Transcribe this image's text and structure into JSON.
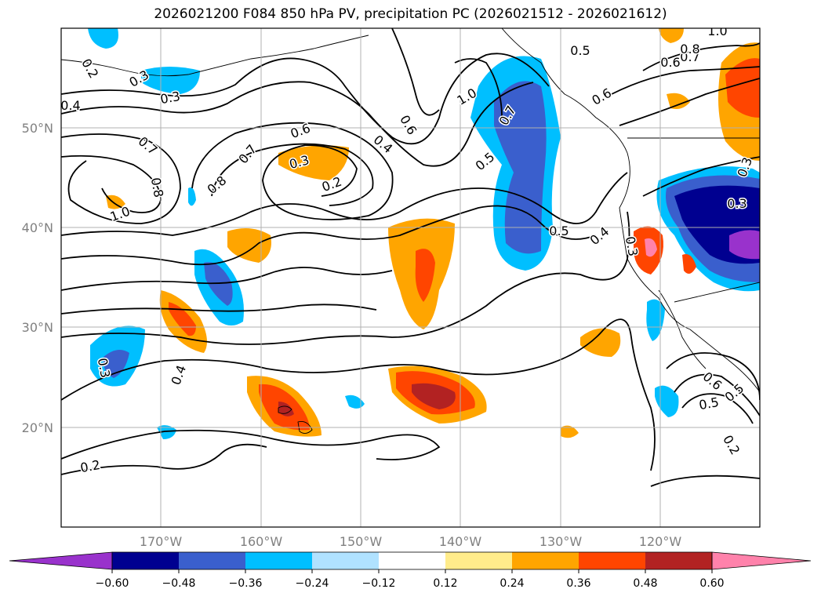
{
  "title": "2026021200 F084 850 hPa PV, precipitation PC (2026021512 - 2026021612)",
  "lat_labels": [
    "50°N",
    "40°N",
    "30°N",
    "20°N"
  ],
  "lon_labels": [
    "170°W",
    "160°W",
    "150°W",
    "140°W",
    "130°W",
    "120°W"
  ],
  "colorbar": {
    "ticks": [
      "−0.60",
      "−0.48",
      "−0.36",
      "−0.24",
      "−0.12",
      "0.12",
      "0.24",
      "0.36",
      "0.48",
      "0.60"
    ],
    "colors": [
      "#9932cc",
      "#000090",
      "#3a5fcd",
      "#00bfff",
      "#b0e2ff",
      "#ffffff",
      "#ffec8b",
      "#ffa500",
      "#ff4500",
      "#b22222",
      "#ff82ab"
    ]
  },
  "contour_labels": [
    "0.2",
    "0.3",
    "0.3",
    "0.4",
    "0.7",
    "0.8",
    "1.0",
    "0.7",
    "0.8",
    "0.6",
    "0.3",
    "0.2",
    "0.4",
    "0.6",
    "1.0",
    "0.7",
    "0.5",
    "0.5",
    "0.6",
    "0.5",
    "0.7",
    "0.8",
    "0.6",
    "1.0",
    "0.4",
    "0.3",
    "0.5",
    "0.3",
    "0.3",
    "0.4",
    "0.6",
    "0.5",
    "0.2",
    "0.2",
    "0.3"
  ]
}
